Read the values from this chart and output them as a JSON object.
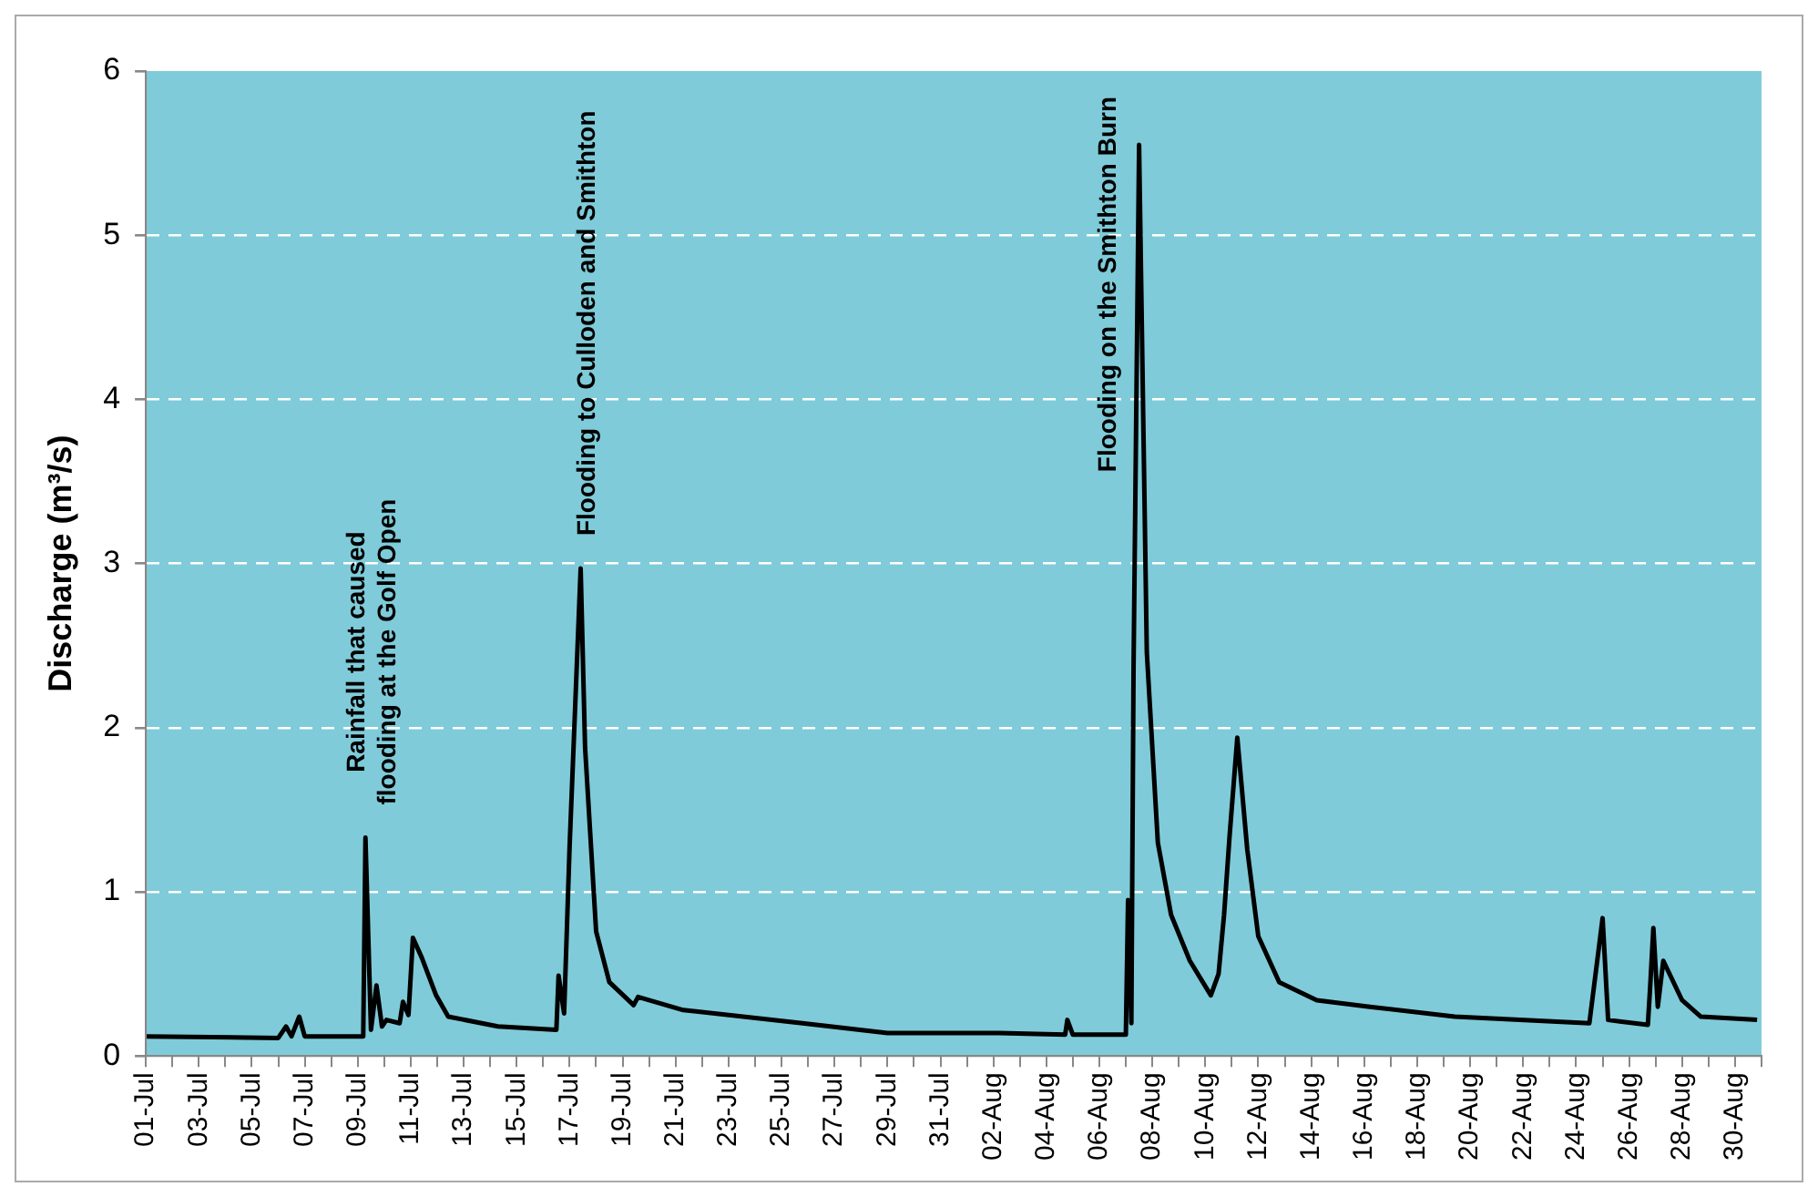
{
  "chart_data": {
    "type": "line",
    "ylabel": "Discharge (m³/s)",
    "x": [
      "--07-01T00:00",
      "--07-06T00:00",
      "--07-06T07:00",
      "--07-06T12:00",
      "--07-06T19:00",
      "--07-07T00:00",
      "--07-09T05:00",
      "--07-09T07:00",
      "--07-09T12:00",
      "--07-09T17:00",
      "--07-09T22:00",
      "--07-10T02:00",
      "--07-10T14:00",
      "--07-10T17:00",
      "--07-10T22:00",
      "--07-11T02:00",
      "--07-11T10:00",
      "--07-11T23:00",
      "--07-12T10:00",
      "--07-14T07:00",
      "--07-16T12:00",
      "--07-16T14:00",
      "--07-16T19:00",
      "--07-17T00:00",
      "--07-17T10:00",
      "--07-17T14:00",
      "--07-18T00:00",
      "--07-18T12:00",
      "--07-19T10:00",
      "--07-19T14:00",
      "--07-21T07:00",
      "--07-25T19:00",
      "--07-29T00:00",
      "--08-02T05:00",
      "--08-04T17:00",
      "--08-04T19:00",
      "--08-05T00:00",
      "--08-07T00:00",
      "--08-07T02:00",
      "--08-07T05:00",
      "--08-07T07:00",
      "--08-07T12:00",
      "--08-07T19:00",
      "--08-08T05:00",
      "--08-08T17:00",
      "--08-09T10:00",
      "--08-10T05:00",
      "--08-10T12:00",
      "--08-10T17:00",
      "--08-10T22:00",
      "--08-11T05:00",
      "--08-11T14:00",
      "--08-12T00:00",
      "--08-12T19:00",
      "--08-14T05:00",
      "--08-16T05:00",
      "--08-19T10:00",
      "--08-24T12:00",
      "--08-25T00:00",
      "--08-25T05:00",
      "--08-26T17:00",
      "--08-26T19:00",
      "--08-26T22:00",
      "--08-27T02:00",
      "--08-27T07:00",
      "--08-28T00:00",
      "--08-28T17:00",
      "--08-30T20:00"
    ],
    "series": [
      {
        "color": "#000000",
        "values": [
          0.12,
          0.11,
          0.18,
          0.12,
          0.24,
          0.12,
          0.12,
          1.33,
          0.16,
          0.43,
          0.18,
          0.22,
          0.2,
          0.33,
          0.25,
          0.72,
          0.6,
          0.37,
          0.24,
          0.18,
          0.16,
          0.49,
          0.26,
          1.28,
          2.97,
          1.88,
          0.76,
          0.45,
          0.31,
          0.36,
          0.28,
          0.2,
          0.14,
          0.14,
          0.13,
          0.22,
          0.13,
          0.13,
          0.95,
          0.2,
          2.38,
          5.55,
          2.46,
          1.3,
          0.86,
          0.58,
          0.37,
          0.5,
          0.86,
          1.34,
          1.94,
          1.26,
          0.73,
          0.45,
          0.34,
          0.3,
          0.24,
          0.2,
          0.84,
          0.22,
          0.19,
          0.41,
          0.78,
          0.3,
          0.58,
          0.34,
          0.24,
          0.22
        ]
      }
    ],
    "xlim": [
      "--07-01",
      "--08-31"
    ],
    "xticks": [
      {
        "value": "--07-01",
        "label": "01-Jul"
      },
      {
        "value": "--07-02",
        "label": null
      },
      {
        "value": "--07-03",
        "label": "03-Jul"
      },
      {
        "value": "--07-04",
        "label": null
      },
      {
        "value": "--07-05",
        "label": "05-Jul"
      },
      {
        "value": "--07-06",
        "label": null
      },
      {
        "value": "--07-07",
        "label": "07-Jul"
      },
      {
        "value": "--07-08",
        "label": null
      },
      {
        "value": "--07-09",
        "label": "09-Jul"
      },
      {
        "value": "--07-10",
        "label": null
      },
      {
        "value": "--07-11",
        "label": "11-Jul"
      },
      {
        "value": "--07-12",
        "label": null
      },
      {
        "value": "--07-13",
        "label": "13-Jul"
      },
      {
        "value": "--07-14",
        "label": null
      },
      {
        "value": "--07-15",
        "label": "15-Jul"
      },
      {
        "value": "--07-16",
        "label": null
      },
      {
        "value": "--07-17",
        "label": "17-Jul"
      },
      {
        "value": "--07-18",
        "label": null
      },
      {
        "value": "--07-19",
        "label": "19-Jul"
      },
      {
        "value": "--07-20",
        "label": null
      },
      {
        "value": "--07-21",
        "label": "21-Jul"
      },
      {
        "value": "--07-22",
        "label": null
      },
      {
        "value": "--07-23",
        "label": "23-Jul"
      },
      {
        "value": "--07-24",
        "label": null
      },
      {
        "value": "--07-25",
        "label": "25-Jul"
      },
      {
        "value": "--07-26",
        "label": null
      },
      {
        "value": "--07-27",
        "label": "27-Jul"
      },
      {
        "value": "--07-28",
        "label": null
      },
      {
        "value": "--07-29",
        "label": "29-Jul"
      },
      {
        "value": "--07-30",
        "label": null
      },
      {
        "value": "--07-31",
        "label": "31-Jul"
      },
      {
        "value": "--08-01",
        "label": null
      },
      {
        "value": "--08-02",
        "label": "02-Aug"
      },
      {
        "value": "--08-03",
        "label": null
      },
      {
        "value": "--08-04",
        "label": "04-Aug"
      },
      {
        "value": "--08-05",
        "label": null
      },
      {
        "value": "--08-06",
        "label": "06-Aug"
      },
      {
        "value": "--08-07",
        "label": null
      },
      {
        "value": "--08-08",
        "label": "08-Aug"
      },
      {
        "value": "--08-09",
        "label": null
      },
      {
        "value": "--08-10",
        "label": "10-Aug"
      },
      {
        "value": "--08-11",
        "label": null
      },
      {
        "value": "--08-12",
        "label": "12-Aug"
      },
      {
        "value": "--08-13",
        "label": null
      },
      {
        "value": "--08-14",
        "label": "14-Aug"
      },
      {
        "value": "--08-15",
        "label": null
      },
      {
        "value": "--08-16",
        "label": "16-Aug"
      },
      {
        "value": "--08-17",
        "label": null
      },
      {
        "value": "--08-18",
        "label": "18-Aug"
      },
      {
        "value": "--08-19",
        "label": null
      },
      {
        "value": "--08-20",
        "label": "20-Aug"
      },
      {
        "value": "--08-21",
        "label": null
      },
      {
        "value": "--08-22",
        "label": "22-Aug"
      },
      {
        "value": "--08-23",
        "label": null
      },
      {
        "value": "--08-24",
        "label": "24-Aug"
      },
      {
        "value": "--08-25",
        "label": null
      },
      {
        "value": "--08-26",
        "label": "26-Aug"
      },
      {
        "value": "--08-27",
        "label": null
      },
      {
        "value": "--08-28",
        "label": "28-Aug"
      },
      {
        "value": "--08-29",
        "label": null
      },
      {
        "value": "--08-30",
        "label": "30-Aug"
      },
      {
        "value": "--08-31",
        "label": null
      }
    ],
    "ylim": [
      0,
      6
    ],
    "yticks": [
      0,
      1,
      2,
      3,
      4,
      5,
      6
    ],
    "grid": "y",
    "marker": "none",
    "line_style": "solid",
    "annotations": [
      {
        "text": "Rainfall that caused\nflooding at the Golf Open",
        "x": "--07-09T07:00",
        "y": 1.33
      },
      {
        "text": "Flooding to Culloden and Smithton",
        "x": "--07-17T10:00",
        "y": 2.97
      },
      {
        "text": "Flooding on the Smithton Burn",
        "x": "--08-07T12:00",
        "y": 5.55
      }
    ]
  }
}
